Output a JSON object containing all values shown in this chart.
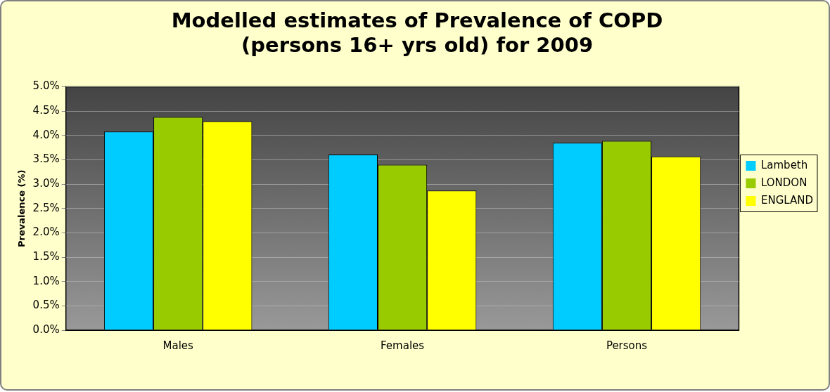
{
  "chart_data": {
    "type": "bar",
    "title": "Modelled estimates of Prevalence of COPD\n(persons 16+ yrs old) for 2009",
    "ylabel": "Prevalence (%)",
    "categories": [
      "Males",
      "Females",
      "Persons"
    ],
    "series": [
      {
        "name": "Lambeth",
        "color": "#00ccff",
        "values": [
          4.08,
          3.61,
          3.85
        ]
      },
      {
        "name": "LONDON",
        "color": "#99cc00",
        "values": [
          4.38,
          3.4,
          3.89
        ]
      },
      {
        "name": "ENGLAND",
        "color": "#ffff00",
        "values": [
          4.29,
          2.87,
          3.57
        ]
      }
    ],
    "ylim": [
      0,
      5
    ],
    "yticks": [
      {
        "value": 0,
        "label": "0.0%"
      },
      {
        "value": 0.5,
        "label": "0.5%"
      },
      {
        "value": 1,
        "label": "1.0%"
      },
      {
        "value": 1.5,
        "label": "1.5%"
      },
      {
        "value": 2,
        "label": "2.0%"
      },
      {
        "value": 2.5,
        "label": "2.5%"
      },
      {
        "value": 3,
        "label": "3.0%"
      },
      {
        "value": 3.5,
        "label": "3.5%"
      },
      {
        "value": 4,
        "label": "4.0%"
      },
      {
        "value": 4.5,
        "label": "4.5%"
      },
      {
        "value": 5,
        "label": "5.0%"
      }
    ],
    "grid": "y",
    "legend": "right"
  }
}
